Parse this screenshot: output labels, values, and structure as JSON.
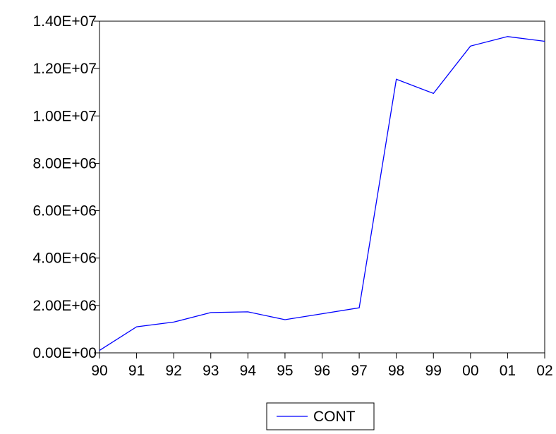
{
  "chart_data": {
    "type": "line",
    "title": "",
    "xlabel": "",
    "ylabel": "",
    "categories": [
      "90",
      "91",
      "92",
      "93",
      "94",
      "95",
      "96",
      "97",
      "98",
      "99",
      "00",
      "01",
      "02"
    ],
    "y_tick_labels": [
      "0.00E+00",
      "2.00E+06",
      "4.00E+06",
      "6.00E+06",
      "8.00E+06",
      "1.00E+07",
      "1.20E+07",
      "1.40E+07"
    ],
    "y_tick_values": [
      0,
      2000000,
      4000000,
      6000000,
      8000000,
      10000000,
      12000000,
      14000000
    ],
    "ylim": [
      0,
      14000000
    ],
    "grid": false,
    "legend_position": "bottom-center",
    "series": [
      {
        "name": "CONT",
        "color": "#0000ff",
        "values": [
          100000,
          1100000,
          1300000,
          1700000,
          1730000,
          1400000,
          1650000,
          1900000,
          11550000,
          10950000,
          12950000,
          13350000,
          13150000
        ]
      }
    ]
  }
}
